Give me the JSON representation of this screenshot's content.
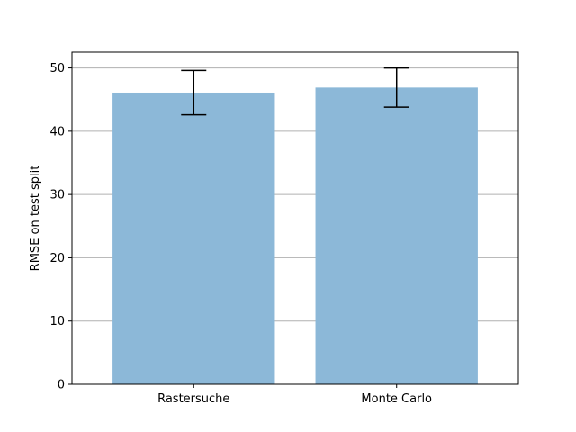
{
  "chart_data": {
    "type": "bar",
    "title": "",
    "xlabel": "",
    "ylabel": "RMSE on test split",
    "categories": [
      "Rastersuche",
      "Monte Carlo"
    ],
    "values": [
      46.1,
      46.9
    ],
    "errors": [
      3.5,
      3.1
    ],
    "ylim": [
      0,
      52.5
    ],
    "yticks": [
      0,
      10,
      20,
      30,
      40,
      50
    ],
    "grid": "y",
    "bar_color": "#8cb8d8",
    "grid_color": "#b0b0b0",
    "legend": "none"
  }
}
